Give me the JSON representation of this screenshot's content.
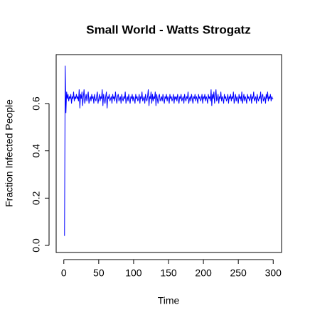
{
  "chart_data": {
    "type": "line",
    "title": "Small World - Watts Strogatz",
    "xlabel": "Time",
    "ylabel": "Fraction Infected People",
    "color": "#0000ff",
    "xlim": [
      -10.96,
      311.96
    ],
    "ylim": [
      -0.03,
      0.807
    ],
    "xticks": [
      0,
      50,
      100,
      150,
      200,
      250,
      300
    ],
    "yticks": [
      {
        "value": 0,
        "label": "0.0"
      },
      0.2,
      0.4,
      0.6
    ],
    "x": [
      1,
      2,
      3,
      4,
      5,
      6,
      7,
      8,
      9,
      10,
      11,
      12,
      13,
      14,
      15,
      16,
      17,
      18,
      19,
      20,
      21,
      22,
      23,
      24,
      25,
      26,
      27,
      28,
      29,
      30,
      31,
      32,
      33,
      34,
      35,
      36,
      37,
      38,
      39,
      40,
      41,
      42,
      43,
      44,
      45,
      46,
      47,
      48,
      49,
      50,
      51,
      52,
      53,
      54,
      55,
      56,
      57,
      58,
      59,
      60,
      61,
      62,
      63,
      64,
      65,
      66,
      67,
      68,
      69,
      70,
      71,
      72,
      73,
      74,
      75,
      76,
      77,
      78,
      79,
      80,
      81,
      82,
      83,
      84,
      85,
      86,
      87,
      88,
      89,
      90,
      91,
      92,
      93,
      94,
      95,
      96,
      97,
      98,
      99,
      100,
      101,
      102,
      103,
      104,
      105,
      106,
      107,
      108,
      109,
      110,
      111,
      112,
      113,
      114,
      115,
      116,
      117,
      118,
      119,
      120,
      121,
      122,
      123,
      124,
      125,
      126,
      127,
      128,
      129,
      130,
      131,
      132,
      133,
      134,
      135,
      136,
      137,
      138,
      139,
      140,
      141,
      142,
      143,
      144,
      145,
      146,
      147,
      148,
      149,
      150,
      151,
      152,
      153,
      154,
      155,
      156,
      157,
      158,
      159,
      160,
      161,
      162,
      163,
      164,
      165,
      166,
      167,
      168,
      169,
      170,
      171,
      172,
      173,
      174,
      175,
      176,
      177,
      178,
      179,
      180,
      181,
      182,
      183,
      184,
      185,
      186,
      187,
      188,
      189,
      190,
      191,
      192,
      193,
      194,
      195,
      196,
      197,
      198,
      199,
      200,
      201,
      202,
      203,
      204,
      205,
      206,
      207,
      208,
      209,
      210,
      211,
      212,
      213,
      214,
      215,
      216,
      217,
      218,
      219,
      220,
      221,
      222,
      223,
      224,
      225,
      226,
      227,
      228,
      229,
      230,
      231,
      232,
      233,
      234,
      235,
      236,
      237,
      238,
      239,
      240,
      241,
      242,
      243,
      244,
      245,
      246,
      247,
      248,
      249,
      250,
      251,
      252,
      253,
      254,
      255,
      256,
      257,
      258,
      259,
      260,
      261,
      262,
      263,
      264,
      265,
      266,
      267,
      268,
      269,
      270,
      271,
      272,
      273,
      274,
      275,
      276,
      277,
      278,
      279,
      280,
      281,
      282,
      283,
      284,
      285,
      286,
      287,
      288,
      289,
      290,
      291,
      292,
      293,
      294,
      295,
      296,
      297,
      298,
      299,
      300
    ],
    "values": [
      0.04,
      0.76,
      0.56,
      0.65,
      0.62,
      0.64,
      0.61,
      0.63,
      0.62,
      0.64,
      0.6,
      0.63,
      0.62,
      0.65,
      0.61,
      0.63,
      0.62,
      0.64,
      0.62,
      0.63,
      0.61,
      0.66,
      0.58,
      0.64,
      0.62,
      0.65,
      0.59,
      0.63,
      0.66,
      0.6,
      0.62,
      0.64,
      0.61,
      0.63,
      0.65,
      0.6,
      0.62,
      0.63,
      0.61,
      0.64,
      0.62,
      0.63,
      0.6,
      0.64,
      0.62,
      0.61,
      0.63,
      0.65,
      0.6,
      0.62,
      0.64,
      0.61,
      0.63,
      0.62,
      0.66,
      0.59,
      0.64,
      0.62,
      0.6,
      0.63,
      0.65,
      0.58,
      0.63,
      0.62,
      0.64,
      0.61,
      0.62,
      0.63,
      0.6,
      0.64,
      0.62,
      0.63,
      0.61,
      0.65,
      0.62,
      0.6,
      0.63,
      0.64,
      0.61,
      0.62,
      0.63,
      0.6,
      0.64,
      0.62,
      0.61,
      0.63,
      0.62,
      0.65,
      0.6,
      0.62,
      0.63,
      0.61,
      0.64,
      0.62,
      0.6,
      0.63,
      0.62,
      0.64,
      0.61,
      0.63,
      0.62,
      0.6,
      0.64,
      0.62,
      0.63,
      0.61,
      0.62,
      0.64,
      0.6,
      0.63,
      0.62,
      0.65,
      0.61,
      0.62,
      0.63,
      0.6,
      0.64,
      0.62,
      0.61,
      0.63,
      0.66,
      0.59,
      0.63,
      0.62,
      0.65,
      0.6,
      0.64,
      0.61,
      0.63,
      0.62,
      0.65,
      0.59,
      0.64,
      0.62,
      0.6,
      0.63,
      0.64,
      0.61,
      0.62,
      0.63,
      0.61,
      0.64,
      0.62,
      0.6,
      0.63,
      0.62,
      0.64,
      0.61,
      0.63,
      0.62,
      0.6,
      0.64,
      0.62,
      0.63,
      0.61,
      0.62,
      0.64,
      0.6,
      0.63,
      0.62,
      0.63,
      0.61,
      0.64,
      0.62,
      0.6,
      0.63,
      0.62,
      0.64,
      0.61,
      0.62,
      0.63,
      0.6,
      0.64,
      0.62,
      0.61,
      0.63,
      0.62,
      0.65,
      0.6,
      0.62,
      0.63,
      0.61,
      0.64,
      0.62,
      0.6,
      0.63,
      0.62,
      0.64,
      0.61,
      0.63,
      0.62,
      0.6,
      0.64,
      0.62,
      0.63,
      0.61,
      0.62,
      0.64,
      0.6,
      0.63,
      0.62,
      0.64,
      0.61,
      0.63,
      0.62,
      0.6,
      0.64,
      0.62,
      0.63,
      0.61,
      0.66,
      0.59,
      0.64,
      0.62,
      0.65,
      0.6,
      0.63,
      0.66,
      0.61,
      0.62,
      0.64,
      0.6,
      0.63,
      0.62,
      0.65,
      0.61,
      0.63,
      0.62,
      0.6,
      0.64,
      0.62,
      0.63,
      0.61,
      0.62,
      0.64,
      0.6,
      0.63,
      0.62,
      0.64,
      0.61,
      0.63,
      0.62,
      0.65,
      0.6,
      0.62,
      0.64,
      0.61,
      0.63,
      0.62,
      0.6,
      0.64,
      0.62,
      0.63,
      0.61,
      0.65,
      0.6,
      0.62,
      0.64,
      0.61,
      0.63,
      0.62,
      0.6,
      0.64,
      0.62,
      0.63,
      0.61,
      0.62,
      0.64,
      0.6,
      0.63,
      0.62,
      0.65,
      0.61,
      0.62,
      0.63,
      0.6,
      0.64,
      0.62,
      0.61,
      0.63,
      0.62,
      0.65,
      0.6,
      0.63,
      0.64,
      0.61,
      0.62,
      0.63,
      0.6,
      0.64,
      0.62,
      0.65,
      0.61,
      0.63,
      0.62,
      0.64,
      0.61,
      0.63,
      0.62,
      0.62
    ]
  }
}
